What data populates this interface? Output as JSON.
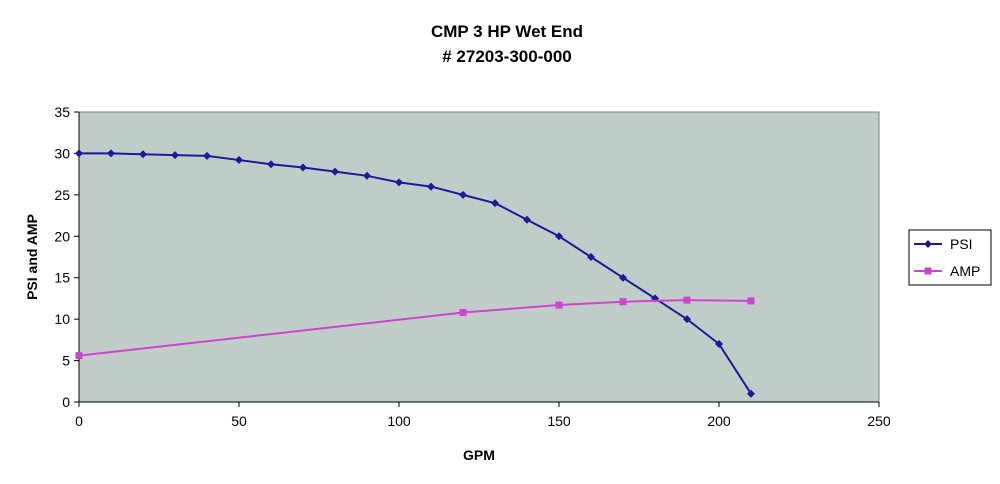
{
  "chart_data": {
    "type": "line",
    "title": "CMP 3 HP Wet End",
    "subtitle": "# 27203-300-000",
    "xlabel": "GPM",
    "ylabel": "PSI and AMP",
    "xlim": [
      0,
      250
    ],
    "ylim": [
      0,
      35
    ],
    "x_ticks": [
      0,
      50,
      100,
      150,
      200,
      250
    ],
    "y_ticks": [
      0,
      5,
      10,
      15,
      20,
      25,
      30,
      35
    ],
    "grid": false,
    "legend_position": "right",
    "plot_background": "#c0ccc8",
    "series": [
      {
        "name": "PSI",
        "color": "#1a1a9a",
        "marker": "diamond",
        "points": [
          [
            0,
            30
          ],
          [
            10,
            30
          ],
          [
            20,
            29.9
          ],
          [
            30,
            29.8
          ],
          [
            40,
            29.7
          ],
          [
            50,
            29.2
          ],
          [
            60,
            28.7
          ],
          [
            70,
            28.3
          ],
          [
            80,
            27.8
          ],
          [
            90,
            27.3
          ],
          [
            100,
            26.5
          ],
          [
            110,
            26
          ],
          [
            120,
            25
          ],
          [
            130,
            24
          ],
          [
            140,
            22
          ],
          [
            150,
            20
          ],
          [
            160,
            17.5
          ],
          [
            170,
            15
          ],
          [
            180,
            12.5
          ],
          [
            190,
            10
          ],
          [
            200,
            7
          ],
          [
            210,
            1
          ]
        ]
      },
      {
        "name": "AMP",
        "color": "#cc44cc",
        "marker": "square",
        "points": [
          [
            0,
            5.6
          ],
          [
            120,
            10.8
          ],
          [
            150,
            11.7
          ],
          [
            170,
            12.1
          ],
          [
            190,
            12.3
          ],
          [
            210,
            12.2
          ]
        ]
      }
    ]
  }
}
